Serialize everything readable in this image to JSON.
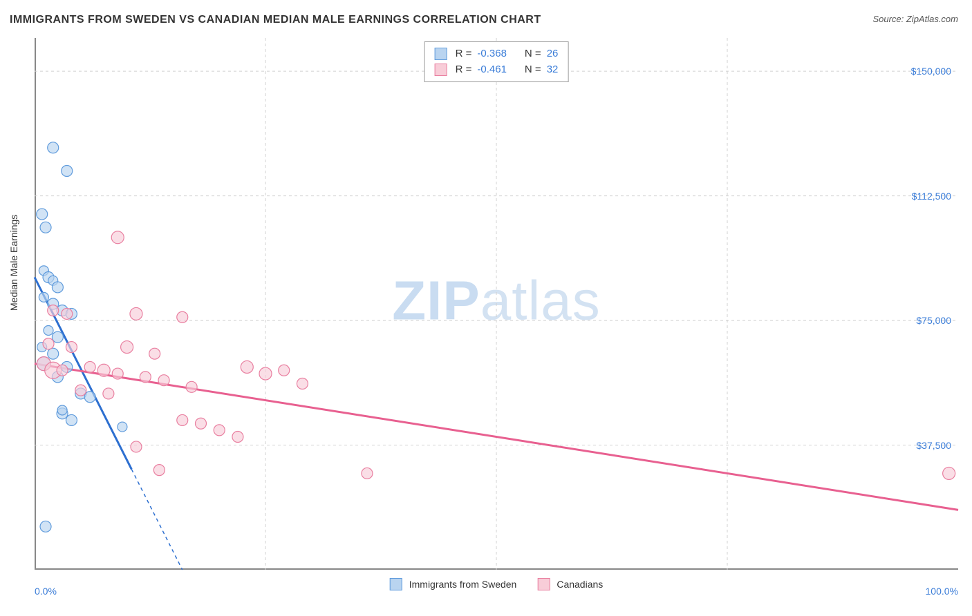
{
  "title": "IMMIGRANTS FROM SWEDEN VS CANADIAN MEDIAN MALE EARNINGS CORRELATION CHART",
  "source_prefix": "Source: ",
  "source_name": "ZipAtlas.com",
  "ylabel": "Median Male Earnings",
  "watermark_bold": "ZIP",
  "watermark_thin": "atlas",
  "chart": {
    "type": "scatter",
    "background_color": "#ffffff",
    "grid_color": "#d0d0d0",
    "axis_color": "#888888",
    "text_color": "#333333",
    "value_color": "#3b7dd8",
    "xlim": [
      0,
      100
    ],
    "ylim": [
      0,
      160000
    ],
    "yticks": [
      {
        "v": 37500,
        "label": "$37,500"
      },
      {
        "v": 75000,
        "label": "$75,000"
      },
      {
        "v": 112500,
        "label": "$112,500"
      },
      {
        "v": 150000,
        "label": "$150,000"
      }
    ],
    "xticks_minor": [
      25,
      50,
      75
    ],
    "xtick_labels": [
      {
        "v": 0,
        "label": "0.0%",
        "align": "left"
      },
      {
        "v": 100,
        "label": "100.0%",
        "align": "right"
      }
    ],
    "series": [
      {
        "id": "sweden",
        "label": "Immigrants from Sweden",
        "fill": "#b9d4f0",
        "stroke": "#5f9bdc",
        "line_color": "#2d6fd0",
        "R": "-0.368",
        "N": "26",
        "regression": {
          "x1": 0,
          "y1": 88000,
          "x2": 16,
          "y2": 0,
          "dash_after_x": 10.5
        },
        "points": [
          {
            "x": 0.8,
            "y": 107000,
            "r": 8
          },
          {
            "x": 1.2,
            "y": 103000,
            "r": 8
          },
          {
            "x": 2.0,
            "y": 127000,
            "r": 8
          },
          {
            "x": 3.5,
            "y": 120000,
            "r": 8
          },
          {
            "x": 1.0,
            "y": 90000,
            "r": 7
          },
          {
            "x": 1.5,
            "y": 88000,
            "r": 8
          },
          {
            "x": 2.0,
            "y": 87000,
            "r": 7
          },
          {
            "x": 2.5,
            "y": 85000,
            "r": 8
          },
          {
            "x": 1.0,
            "y": 82000,
            "r": 7
          },
          {
            "x": 2.0,
            "y": 80000,
            "r": 8
          },
          {
            "x": 3.0,
            "y": 78000,
            "r": 8
          },
          {
            "x": 4.0,
            "y": 77000,
            "r": 8
          },
          {
            "x": 1.5,
            "y": 72000,
            "r": 7
          },
          {
            "x": 2.5,
            "y": 70000,
            "r": 8
          },
          {
            "x": 0.8,
            "y": 67000,
            "r": 7
          },
          {
            "x": 2.0,
            "y": 65000,
            "r": 8
          },
          {
            "x": 1.0,
            "y": 62000,
            "r": 10
          },
          {
            "x": 3.5,
            "y": 61000,
            "r": 8
          },
          {
            "x": 2.5,
            "y": 58000,
            "r": 8
          },
          {
            "x": 5.0,
            "y": 53000,
            "r": 8
          },
          {
            "x": 6.0,
            "y": 52000,
            "r": 8
          },
          {
            "x": 3.0,
            "y": 47000,
            "r": 8
          },
          {
            "x": 4.0,
            "y": 45000,
            "r": 8
          },
          {
            "x": 9.5,
            "y": 43000,
            "r": 7
          },
          {
            "x": 1.2,
            "y": 13000,
            "r": 8
          },
          {
            "x": 3.0,
            "y": 48000,
            "r": 7
          }
        ]
      },
      {
        "id": "canadians",
        "label": "Canadians",
        "fill": "#f8cdd8",
        "stroke": "#e97fa0",
        "line_color": "#e86090",
        "R": "-0.461",
        "N": "32",
        "regression": {
          "x1": 0,
          "y1": 62000,
          "x2": 100,
          "y2": 18000
        },
        "points": [
          {
            "x": 9.0,
            "y": 100000,
            "r": 9
          },
          {
            "x": 2.0,
            "y": 78000,
            "r": 8
          },
          {
            "x": 3.5,
            "y": 77000,
            "r": 8
          },
          {
            "x": 11.0,
            "y": 77000,
            "r": 9
          },
          {
            "x": 16.0,
            "y": 76000,
            "r": 8
          },
          {
            "x": 1.5,
            "y": 68000,
            "r": 8
          },
          {
            "x": 4.0,
            "y": 67000,
            "r": 8
          },
          {
            "x": 10.0,
            "y": 67000,
            "r": 9
          },
          {
            "x": 13.0,
            "y": 65000,
            "r": 8
          },
          {
            "x": 1.0,
            "y": 62000,
            "r": 10
          },
          {
            "x": 2.0,
            "y": 60000,
            "r": 12
          },
          {
            "x": 3.0,
            "y": 60000,
            "r": 8
          },
          {
            "x": 6.0,
            "y": 61000,
            "r": 8
          },
          {
            "x": 7.5,
            "y": 60000,
            "r": 9
          },
          {
            "x": 9.0,
            "y": 59000,
            "r": 8
          },
          {
            "x": 12.0,
            "y": 58000,
            "r": 8
          },
          {
            "x": 23.0,
            "y": 61000,
            "r": 9
          },
          {
            "x": 25.0,
            "y": 59000,
            "r": 9
          },
          {
            "x": 27.0,
            "y": 60000,
            "r": 8
          },
          {
            "x": 29.0,
            "y": 56000,
            "r": 8
          },
          {
            "x": 5.0,
            "y": 54000,
            "r": 8
          },
          {
            "x": 8.0,
            "y": 53000,
            "r": 8
          },
          {
            "x": 14.0,
            "y": 57000,
            "r": 8
          },
          {
            "x": 17.0,
            "y": 55000,
            "r": 8
          },
          {
            "x": 16.0,
            "y": 45000,
            "r": 8
          },
          {
            "x": 18.0,
            "y": 44000,
            "r": 8
          },
          {
            "x": 20.0,
            "y": 42000,
            "r": 8
          },
          {
            "x": 22.0,
            "y": 40000,
            "r": 8
          },
          {
            "x": 11.0,
            "y": 37000,
            "r": 8
          },
          {
            "x": 13.5,
            "y": 30000,
            "r": 8
          },
          {
            "x": 36.0,
            "y": 29000,
            "r": 8
          },
          {
            "x": 99.0,
            "y": 29000,
            "r": 9
          }
        ]
      }
    ],
    "legend_labels": {
      "R_prefix": "R = ",
      "N_prefix": "N = "
    }
  }
}
